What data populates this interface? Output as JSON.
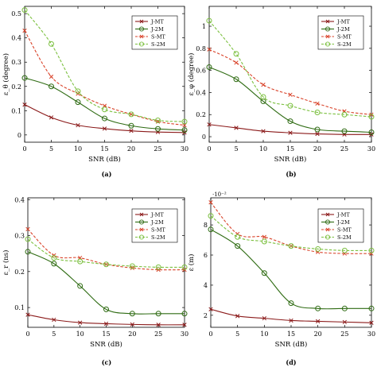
{
  "colors": {
    "J-MT": "#8b1a1a",
    "J-2M": "#2e6b12",
    "S-MT": "#d9432a",
    "S-2M": "#7cc040"
  },
  "chart_data": [
    {
      "type": "line",
      "caption": "(a)",
      "xlabel": "SNR (dB)",
      "ylabel": "ε_θ (degree)",
      "xlim": [
        0,
        30
      ],
      "ylim": [
        -0.03,
        0.53
      ],
      "xticks": [
        "0",
        "5",
        "10",
        "15",
        "20",
        "25",
        "30"
      ],
      "yticks": [
        "0",
        "0.1",
        "0.2",
        "0.3",
        "0.4",
        "0.5"
      ],
      "x": [
        0,
        5,
        10,
        15,
        20,
        25,
        30
      ],
      "series": [
        {
          "name": "J-MT",
          "style": "solid",
          "marker": "x",
          "values": [
            0.125,
            0.072,
            0.04,
            0.026,
            0.017,
            0.012,
            0.01
          ]
        },
        {
          "name": "J-2M",
          "style": "solid",
          "marker": "o",
          "values": [
            0.235,
            0.2,
            0.135,
            0.068,
            0.038,
            0.025,
            0.02
          ]
        },
        {
          "name": "S-MT",
          "style": "dashed",
          "marker": "x",
          "values": [
            0.43,
            0.24,
            0.17,
            0.12,
            0.085,
            0.055,
            0.04
          ]
        },
        {
          "name": "S-2M",
          "style": "dashed",
          "marker": "o",
          "values": [
            0.515,
            0.375,
            0.18,
            0.105,
            0.085,
            0.06,
            0.055
          ]
        }
      ],
      "legend": "top-right",
      "grid": false
    },
    {
      "type": "line",
      "caption": "(b)",
      "xlabel": "SNR (dB)",
      "ylabel": "ε_φ (degree)",
      "xlim": [
        0,
        30
      ],
      "ylim": [
        -0.05,
        1.18
      ],
      "xticks": [
        "0",
        "5",
        "10",
        "15",
        "20",
        "25",
        "30"
      ],
      "yticks": [
        "0",
        "0.2",
        "0.4",
        "0.6",
        "0.8",
        "1"
      ],
      "x": [
        0,
        5,
        10,
        15,
        20,
        25,
        30
      ],
      "series": [
        {
          "name": "J-MT",
          "style": "solid",
          "marker": "x",
          "values": [
            0.11,
            0.08,
            0.05,
            0.035,
            0.025,
            0.02,
            0.02
          ]
        },
        {
          "name": "J-2M",
          "style": "solid",
          "marker": "o",
          "values": [
            0.63,
            0.52,
            0.32,
            0.14,
            0.065,
            0.05,
            0.04
          ]
        },
        {
          "name": "S-MT",
          "style": "dashed",
          "marker": "x",
          "values": [
            0.79,
            0.67,
            0.47,
            0.38,
            0.3,
            0.23,
            0.2
          ]
        },
        {
          "name": "S-2M",
          "style": "dashed",
          "marker": "o",
          "values": [
            1.05,
            0.75,
            0.36,
            0.28,
            0.22,
            0.2,
            0.18
          ]
        }
      ],
      "legend": "top-right",
      "grid": false
    },
    {
      "type": "line",
      "caption": "(c)",
      "xlabel": "SNR (dB)",
      "ylabel": "ε_r (ns)",
      "xlim": [
        0,
        30
      ],
      "ylim": [
        0.045,
        0.405
      ],
      "xticks": [
        "0",
        "5",
        "10",
        "15",
        "20",
        "25",
        "30"
      ],
      "yticks": [
        "0.1",
        "0.2",
        "0.3",
        "0.4"
      ],
      "x": [
        0,
        5,
        10,
        15,
        20,
        25,
        30
      ],
      "series": [
        {
          "name": "J-MT",
          "style": "solid",
          "marker": "x",
          "values": [
            0.08,
            0.066,
            0.058,
            0.055,
            0.053,
            0.052,
            0.052
          ]
        },
        {
          "name": "J-2M",
          "style": "solid",
          "marker": "o",
          "values": [
            0.255,
            0.222,
            0.16,
            0.095,
            0.083,
            0.083,
            0.083
          ]
        },
        {
          "name": "S-MT",
          "style": "dashed",
          "marker": "x",
          "values": [
            0.318,
            0.245,
            0.238,
            0.22,
            0.21,
            0.205,
            0.205
          ]
        },
        {
          "name": "S-2M",
          "style": "dashed",
          "marker": "o",
          "values": [
            0.29,
            0.238,
            0.228,
            0.22,
            0.215,
            0.212,
            0.212
          ]
        }
      ],
      "legend": "top-right",
      "grid": false
    },
    {
      "type": "line",
      "caption": "(d)",
      "xlabel": "SNR (dB)",
      "ylabel": "ε (m)",
      "y_multiplier": "·10⁻²",
      "xlim": [
        0,
        30
      ],
      "ylim": [
        1.2,
        9.8
      ],
      "xticks": [
        "0",
        "5",
        "10",
        "15",
        "20",
        "25",
        "30"
      ],
      "yticks": [
        "2",
        "4",
        "6",
        "8"
      ],
      "x": [
        0,
        5,
        10,
        15,
        20,
        25,
        30
      ],
      "series": [
        {
          "name": "J-MT",
          "style": "solid",
          "marker": "x",
          "values": [
            2.4,
            1.95,
            1.8,
            1.65,
            1.6,
            1.55,
            1.5
          ]
        },
        {
          "name": "J-2M",
          "style": "solid",
          "marker": "o",
          "values": [
            7.7,
            6.6,
            4.8,
            2.8,
            2.45,
            2.45,
            2.45
          ]
        },
        {
          "name": "S-MT",
          "style": "dashed",
          "marker": "x",
          "values": [
            9.5,
            7.4,
            7.2,
            6.6,
            6.2,
            6.1,
            6.1
          ]
        },
        {
          "name": "S-2M",
          "style": "dashed",
          "marker": "o",
          "values": [
            8.6,
            7.2,
            6.9,
            6.6,
            6.4,
            6.3,
            6.3
          ]
        }
      ],
      "legend": "top-right",
      "grid": false
    }
  ]
}
